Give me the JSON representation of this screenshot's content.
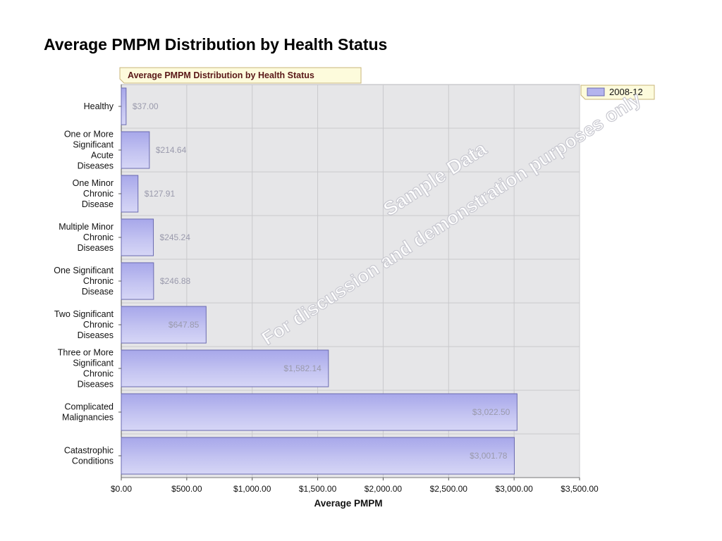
{
  "slide": {
    "title": "Average PMPM Distribution by Health Status"
  },
  "watermark": {
    "line1": "Sample Data",
    "line2": "For discussion and demonstration purposes only"
  },
  "chart_data": {
    "type": "bar",
    "orientation": "horizontal",
    "title": "Average PMPM Distribution by Health Status",
    "xlabel": "Average PMPM",
    "ylabel": "",
    "xlim": [
      0,
      3500
    ],
    "x_ticks": [
      0,
      500,
      1000,
      1500,
      2000,
      2500,
      3000,
      3500
    ],
    "x_tick_labels": [
      "$0.00",
      "$500.00",
      "$1,000.00",
      "$1,500.00",
      "$2,000.00",
      "$2,500.00",
      "$3,000.00",
      "$3,500.00"
    ],
    "grid": true,
    "legend_position": "top-right",
    "categories": [
      "Healthy",
      "One or More Significant Acute Diseases",
      "One Minor Chronic Disease",
      "Multiple Minor Chronic Diseases",
      "One Significant Chronic Disease",
      "Two Significant Chronic Diseases",
      "Three or More Significant Chronic Diseases",
      "Complicated Malignancies",
      "Catastrophic Conditions"
    ],
    "category_label_lines": [
      [
        "Healthy"
      ],
      [
        "One or More",
        "Significant",
        "Acute",
        "Diseases"
      ],
      [
        "One Minor",
        "Chronic",
        "Disease"
      ],
      [
        "Multiple Minor",
        "Chronic",
        "Diseases"
      ],
      [
        "One Significant",
        "Chronic",
        "Disease"
      ],
      [
        "Two Significant",
        "Chronic",
        "Diseases"
      ],
      [
        "Three or More",
        "Significant",
        "Chronic",
        "Diseases"
      ],
      [
        "Complicated",
        "Malignancies"
      ],
      [
        "Catastrophic",
        "Conditions"
      ]
    ],
    "series": [
      {
        "name": "2008-12",
        "color": "#b4b4ee",
        "border_color": "#6a6ab0",
        "values": [
          37.0,
          214.64,
          127.91,
          245.24,
          246.88,
          647.85,
          1582.14,
          3022.5,
          3001.78
        ],
        "value_labels": [
          "$37.00",
          "$214.64",
          "$127.91",
          "$245.24",
          "$246.88",
          "$647.85",
          "$1,582.14",
          "$3,022.50",
          "$3,001.78"
        ]
      }
    ],
    "colors": {
      "plot_background": "#e6e6e8",
      "grid": "#c9c9cc",
      "title_box": "#fdfbdc",
      "title_box_border": "#c8b47a",
      "legend_box": "#fdfbdc",
      "legend_box_border": "#c8b47a"
    }
  }
}
